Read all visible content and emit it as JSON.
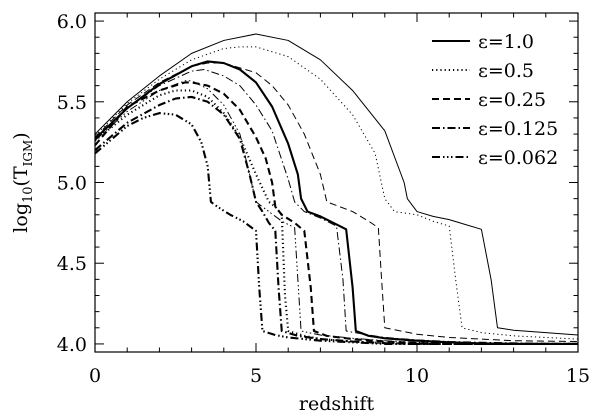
{
  "chart_data": {
    "type": "line",
    "xlabel": "redshift",
    "ylabel_base": "log",
    "ylabel_sub": "10",
    "ylabel_paren_open": "(T",
    "ylabel_inner_sub": "IGM",
    "ylabel_paren_close": ")",
    "xlim": [
      0,
      15
    ],
    "ylim": [
      3.95,
      6.05
    ],
    "x_ticks": [
      0,
      5,
      10,
      15
    ],
    "x_tick_labels": [
      "0",
      "5",
      "10",
      "15"
    ],
    "y_ticks": [
      4.0,
      4.5,
      5.0,
      5.5,
      6.0
    ],
    "y_tick_labels": [
      "4.0",
      "4.5",
      "5.0",
      "5.5",
      "6.0"
    ],
    "legend_position": "top-right",
    "series": [
      {
        "name": "ε=1.0",
        "group": "thick",
        "style": "solid",
        "points": [
          [
            0,
            5.27
          ],
          [
            1,
            5.46
          ],
          [
            2,
            5.61
          ],
          [
            3,
            5.72
          ],
          [
            3.5,
            5.75
          ],
          [
            4,
            5.74
          ],
          [
            4.5,
            5.7
          ],
          [
            5,
            5.62
          ],
          [
            5.5,
            5.47
          ],
          [
            6,
            5.24
          ],
          [
            6.3,
            5.05
          ],
          [
            6.4,
            4.9
          ],
          [
            6.6,
            4.82
          ],
          [
            7,
            4.79
          ],
          [
            7.5,
            4.74
          ],
          [
            7.8,
            4.71
          ],
          [
            8.0,
            4.35
          ],
          [
            8.1,
            4.08
          ],
          [
            8.5,
            4.05
          ],
          [
            9,
            4.035
          ],
          [
            10,
            4.02
          ],
          [
            11,
            4.01
          ],
          [
            12,
            4.003
          ],
          [
            13,
            4.0
          ],
          [
            15,
            4.0
          ]
        ]
      },
      {
        "name": "ε=0.5",
        "group": "thick",
        "style": "dot",
        "points": [
          [
            0,
            5.26
          ],
          [
            1,
            5.42
          ],
          [
            2,
            5.54
          ],
          [
            2.5,
            5.57
          ],
          [
            3,
            5.57
          ],
          [
            3.5,
            5.53
          ],
          [
            4,
            5.43
          ],
          [
            4.5,
            5.28
          ],
          [
            5,
            5.05
          ],
          [
            5.4,
            4.88
          ],
          [
            5.6,
            4.85
          ],
          [
            5.8,
            4.8
          ],
          [
            5.9,
            4.3
          ],
          [
            6.0,
            4.08
          ],
          [
            6.5,
            4.05
          ],
          [
            7,
            4.03
          ],
          [
            8,
            4.015
          ],
          [
            9,
            4.005
          ],
          [
            10,
            4.0
          ],
          [
            15,
            4.0
          ]
        ]
      },
      {
        "name": "ε=0.25",
        "group": "thick",
        "style": "dash",
        "points": [
          [
            0,
            5.23
          ],
          [
            1,
            5.47
          ],
          [
            2,
            5.57
          ],
          [
            2.8,
            5.62
          ],
          [
            3,
            5.62
          ],
          [
            3.5,
            5.6
          ],
          [
            4,
            5.55
          ],
          [
            4.5,
            5.45
          ],
          [
            5,
            5.28
          ],
          [
            5.3,
            5.15
          ],
          [
            5.5,
            5.0
          ],
          [
            5.6,
            4.85
          ],
          [
            5.8,
            4.8
          ],
          [
            6.2,
            4.75
          ],
          [
            6.5,
            4.7
          ],
          [
            6.7,
            4.35
          ],
          [
            6.8,
            4.08
          ],
          [
            7.2,
            4.05
          ],
          [
            8,
            4.03
          ],
          [
            9,
            4.015
          ],
          [
            10,
            4.005
          ],
          [
            11,
            4.0
          ],
          [
            15,
            4.0
          ]
        ]
      },
      {
        "name": "ε=0.125",
        "group": "thick",
        "style": "dashdot",
        "points": [
          [
            0,
            5.2
          ],
          [
            1,
            5.37
          ],
          [
            2,
            5.48
          ],
          [
            2.5,
            5.52
          ],
          [
            3,
            5.53
          ],
          [
            3.5,
            5.5
          ],
          [
            4,
            5.42
          ],
          [
            4.5,
            5.27
          ],
          [
            4.8,
            5.05
          ],
          [
            5.0,
            4.88
          ],
          [
            5.2,
            4.82
          ],
          [
            5.4,
            4.75
          ],
          [
            5.6,
            4.7
          ],
          [
            5.7,
            4.35
          ],
          [
            5.8,
            4.08
          ],
          [
            6.3,
            4.05
          ],
          [
            7,
            4.03
          ],
          [
            8,
            4.015
          ],
          [
            9,
            4.005
          ],
          [
            10,
            4.0
          ],
          [
            15,
            4.0
          ]
        ]
      },
      {
        "name": "ε=0.062",
        "group": "thick",
        "style": "dashdotdotdot",
        "points": [
          [
            0,
            5.18
          ],
          [
            1,
            5.35
          ],
          [
            1.5,
            5.4
          ],
          [
            2,
            5.43
          ],
          [
            2.5,
            5.42
          ],
          [
            3,
            5.36
          ],
          [
            3.3,
            5.25
          ],
          [
            3.5,
            5.1
          ],
          [
            3.6,
            4.88
          ],
          [
            3.8,
            4.85
          ],
          [
            4.2,
            4.8
          ],
          [
            4.6,
            4.76
          ],
          [
            5.0,
            4.7
          ],
          [
            5.1,
            4.35
          ],
          [
            5.2,
            4.08
          ],
          [
            5.6,
            4.055
          ],
          [
            6,
            4.04
          ],
          [
            7,
            4.02
          ],
          [
            8,
            4.01
          ],
          [
            9,
            4.0
          ],
          [
            15,
            4.0
          ]
        ]
      },
      {
        "name": "ε=1.0",
        "group": "thin",
        "style": "solid",
        "points": [
          [
            0,
            5.3
          ],
          [
            1,
            5.5
          ],
          [
            2,
            5.66
          ],
          [
            3,
            5.8
          ],
          [
            4,
            5.88
          ],
          [
            5,
            5.92
          ],
          [
            6,
            5.88
          ],
          [
            7,
            5.76
          ],
          [
            8,
            5.57
          ],
          [
            9,
            5.32
          ],
          [
            9.6,
            5.0
          ],
          [
            9.7,
            4.9
          ],
          [
            10,
            4.82
          ],
          [
            10.5,
            4.79
          ],
          [
            11,
            4.77
          ],
          [
            11.5,
            4.74
          ],
          [
            12,
            4.71
          ],
          [
            12.3,
            4.4
          ],
          [
            12.5,
            4.1
          ],
          [
            13,
            4.085
          ],
          [
            14,
            4.07
          ],
          [
            15,
            4.055
          ]
        ]
      },
      {
        "name": "ε=0.5",
        "group": "thin",
        "style": "dot",
        "points": [
          [
            0,
            5.29
          ],
          [
            1,
            5.49
          ],
          [
            2,
            5.64
          ],
          [
            3,
            5.76
          ],
          [
            4,
            5.83
          ],
          [
            4.5,
            5.84
          ],
          [
            5,
            5.84
          ],
          [
            6,
            5.78
          ],
          [
            7,
            5.64
          ],
          [
            8,
            5.42
          ],
          [
            8.7,
            5.18
          ],
          [
            9.0,
            4.9
          ],
          [
            9.3,
            4.82
          ],
          [
            10,
            4.8
          ],
          [
            10.5,
            4.76
          ],
          [
            11,
            4.73
          ],
          [
            11.2,
            4.4
          ],
          [
            11.4,
            4.1
          ],
          [
            12,
            4.07
          ],
          [
            13,
            4.05
          ],
          [
            14,
            4.04
          ],
          [
            15,
            4.03
          ]
        ]
      },
      {
        "name": "ε=0.25",
        "group": "thin",
        "style": "dash",
        "points": [
          [
            0,
            5.28
          ],
          [
            1,
            5.48
          ],
          [
            2,
            5.62
          ],
          [
            3,
            5.72
          ],
          [
            3.5,
            5.74
          ],
          [
            4,
            5.74
          ],
          [
            5,
            5.68
          ],
          [
            5.5,
            5.6
          ],
          [
            6,
            5.48
          ],
          [
            6.5,
            5.3
          ],
          [
            7,
            5.05
          ],
          [
            7.2,
            4.88
          ],
          [
            7.6,
            4.85
          ],
          [
            8,
            4.82
          ],
          [
            8.5,
            4.76
          ],
          [
            8.8,
            4.72
          ],
          [
            8.9,
            4.4
          ],
          [
            9.0,
            4.1
          ],
          [
            10,
            4.06
          ],
          [
            11,
            4.04
          ],
          [
            12,
            4.03
          ],
          [
            13,
            4.02
          ],
          [
            15,
            4.015
          ]
        ]
      },
      {
        "name": "ε=0.125",
        "group": "thin",
        "style": "dashdot",
        "points": [
          [
            0,
            5.27
          ],
          [
            1,
            5.46
          ],
          [
            2,
            5.6
          ],
          [
            3,
            5.69
          ],
          [
            3.4,
            5.7
          ],
          [
            4,
            5.66
          ],
          [
            4.5,
            5.6
          ],
          [
            5,
            5.48
          ],
          [
            5.5,
            5.32
          ],
          [
            6,
            5.02
          ],
          [
            6.2,
            4.88
          ],
          [
            6.5,
            4.82
          ],
          [
            7,
            4.78
          ],
          [
            7.5,
            4.73
          ],
          [
            7.7,
            4.4
          ],
          [
            7.8,
            4.08
          ],
          [
            8.5,
            4.055
          ],
          [
            9,
            4.04
          ],
          [
            10,
            4.025
          ],
          [
            11,
            4.015
          ],
          [
            12,
            4.01
          ],
          [
            15,
            4.0
          ]
        ]
      },
      {
        "name": "ε=0.062",
        "group": "thin",
        "style": "dashdotdotdot",
        "points": [
          [
            0,
            5.26
          ],
          [
            1,
            5.44
          ],
          [
            2,
            5.57
          ],
          [
            2.8,
            5.63
          ],
          [
            3,
            5.63
          ],
          [
            3.5,
            5.58
          ],
          [
            4,
            5.48
          ],
          [
            4.5,
            5.3
          ],
          [
            4.8,
            5.05
          ],
          [
            5.0,
            4.88
          ],
          [
            5.4,
            4.82
          ],
          [
            5.8,
            4.76
          ],
          [
            6.2,
            4.72
          ],
          [
            6.3,
            4.4
          ],
          [
            6.4,
            4.08
          ],
          [
            7,
            4.055
          ],
          [
            8,
            4.035
          ],
          [
            9,
            4.02
          ],
          [
            10,
            4.01
          ],
          [
            11,
            4.005
          ],
          [
            15,
            4.0
          ]
        ]
      }
    ],
    "legend": [
      {
        "label": "ε=1.0",
        "style": "solid"
      },
      {
        "label": "ε=0.5",
        "style": "dot"
      },
      {
        "label": "ε=0.25",
        "style": "dash"
      },
      {
        "label": "ε=0.125",
        "style": "dashdot"
      },
      {
        "label": "ε=0.062",
        "style": "dashdotdotdot"
      }
    ]
  }
}
